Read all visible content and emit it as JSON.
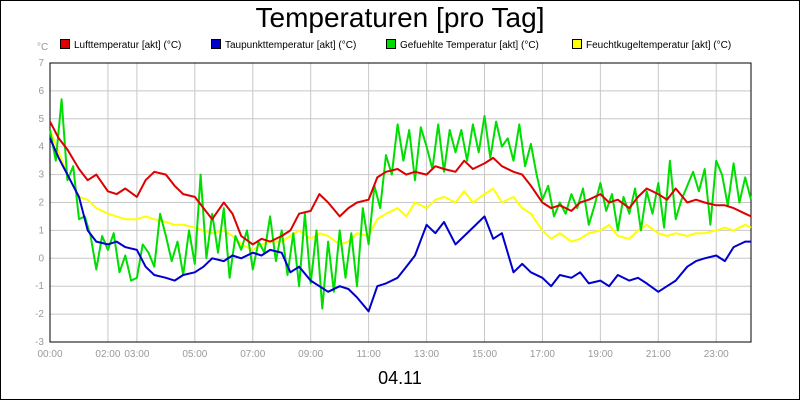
{
  "chart_data": {
    "type": "line",
    "title": "Temperaturen [pro Tag]",
    "unit_label": "°C",
    "date_label": "04.11",
    "ylim": [
      -3,
      7
    ],
    "yticks": [
      -3,
      -2,
      -1,
      0,
      1,
      2,
      3,
      4,
      5,
      6,
      7
    ],
    "xlim": [
      0,
      24.2
    ],
    "xticks": [
      {
        "t": 0,
        "label": "00:00"
      },
      {
        "t": 2,
        "label": "02:00"
      },
      {
        "t": 3,
        "label": "03:00"
      },
      {
        "t": 5,
        "label": "05:00"
      },
      {
        "t": 7,
        "label": "07:00"
      },
      {
        "t": 9,
        "label": "09:00"
      },
      {
        "t": 11,
        "label": "11:00"
      },
      {
        "t": 13,
        "label": "13:00"
      },
      {
        "t": 15,
        "label": "15:00"
      },
      {
        "t": 17,
        "label": "17:00"
      },
      {
        "t": 19,
        "label": "19:00"
      },
      {
        "t": 21,
        "label": "21:00"
      },
      {
        "t": 23,
        "label": "23:00"
      }
    ],
    "grid": true,
    "legend_position": "top",
    "series": [
      {
        "name": "Lufttemperatur [akt] (°C)",
        "color": "#dd0000",
        "x": [
          0,
          0.3,
          0.6,
          1.0,
          1.3,
          1.6,
          2.0,
          2.3,
          2.6,
          3.0,
          3.3,
          3.6,
          4.0,
          4.3,
          4.6,
          5.0,
          5.3,
          5.6,
          6.0,
          6.3,
          6.6,
          7.0,
          7.3,
          7.6,
          8.0,
          8.3,
          8.6,
          9.0,
          9.3,
          9.6,
          10.0,
          10.3,
          10.6,
          11.0,
          11.3,
          11.6,
          12.0,
          12.3,
          12.6,
          13.0,
          13.3,
          13.6,
          14.0,
          14.3,
          14.6,
          15.0,
          15.3,
          15.6,
          16.0,
          16.3,
          16.6,
          17.0,
          17.3,
          17.6,
          18.0,
          18.3,
          18.6,
          19.0,
          19.3,
          19.6,
          20.0,
          20.3,
          20.6,
          21.0,
          21.3,
          21.6,
          22.0,
          22.3,
          22.6,
          23.0,
          23.3,
          23.6,
          24.0,
          24.2
        ],
        "values": [
          4.9,
          4.3,
          3.9,
          3.2,
          2.8,
          3.0,
          2.4,
          2.3,
          2.5,
          2.2,
          2.8,
          3.1,
          3.0,
          2.6,
          2.3,
          2.2,
          1.8,
          1.4,
          2.0,
          1.6,
          0.8,
          0.5,
          0.7,
          0.6,
          0.8,
          1.0,
          1.6,
          1.7,
          2.3,
          2.0,
          1.5,
          1.8,
          2.0,
          2.1,
          2.9,
          3.1,
          3.2,
          3.0,
          3.1,
          3.0,
          3.3,
          3.2,
          3.1,
          3.5,
          3.2,
          3.4,
          3.6,
          3.3,
          3.1,
          3.0,
          2.6,
          2.0,
          1.8,
          1.9,
          1.7,
          2.0,
          2.1,
          2.3,
          2.0,
          2.1,
          1.8,
          2.2,
          2.5,
          2.3,
          2.1,
          2.5,
          2.0,
          2.1,
          2.0,
          1.9,
          1.9,
          1.8,
          1.6,
          1.5
        ]
      },
      {
        "name": "Taupunkttemperatur [akt] (°C)",
        "color": "#0000cc",
        "x": [
          0,
          0.3,
          0.6,
          1.0,
          1.3,
          1.6,
          2.0,
          2.3,
          2.6,
          3.0,
          3.3,
          3.6,
          4.0,
          4.3,
          4.6,
          5.0,
          5.3,
          5.6,
          6.0,
          6.3,
          6.6,
          7.0,
          7.3,
          7.6,
          8.0,
          8.3,
          8.6,
          9.0,
          9.3,
          9.6,
          10.0,
          10.3,
          10.6,
          11.0,
          11.3,
          11.6,
          12.0,
          12.3,
          12.6,
          13.0,
          13.3,
          13.6,
          14.0,
          14.3,
          14.6,
          15.0,
          15.3,
          15.6,
          16.0,
          16.3,
          16.6,
          17.0,
          17.3,
          17.6,
          18.0,
          18.3,
          18.6,
          19.0,
          19.3,
          19.6,
          20.0,
          20.3,
          20.6,
          21.0,
          21.3,
          21.6,
          22.0,
          22.3,
          22.6,
          23.0,
          23.3,
          23.6,
          24.0,
          24.2
        ],
        "values": [
          4.3,
          3.6,
          3.0,
          2.2,
          1.0,
          0.6,
          0.5,
          0.6,
          0.4,
          0.3,
          -0.3,
          -0.6,
          -0.7,
          -0.8,
          -0.6,
          -0.5,
          -0.3,
          0.0,
          -0.1,
          0.1,
          0.0,
          0.2,
          0.1,
          0.3,
          0.2,
          -0.5,
          -0.3,
          -0.8,
          -1.0,
          -1.2,
          -1.0,
          -1.1,
          -1.4,
          -1.9,
          -1.0,
          -0.9,
          -0.7,
          -0.3,
          0.1,
          1.2,
          0.9,
          1.3,
          0.5,
          0.8,
          1.1,
          1.5,
          0.7,
          0.9,
          -0.5,
          -0.2,
          -0.5,
          -0.7,
          -1.0,
          -0.6,
          -0.7,
          -0.5,
          -0.9,
          -0.8,
          -1.0,
          -0.6,
          -0.8,
          -0.7,
          -0.9,
          -1.2,
          -1.0,
          -0.8,
          -0.3,
          -0.1,
          0.0,
          0.1,
          -0.1,
          0.4,
          0.6,
          0.6
        ]
      },
      {
        "name": "Gefuehlte Temperatur [akt] (°C)",
        "color": "#00dd00",
        "x": [
          0,
          0.2,
          0.4,
          0.6,
          0.8,
          1.0,
          1.2,
          1.4,
          1.6,
          1.8,
          2.0,
          2.2,
          2.4,
          2.6,
          2.8,
          3.0,
          3.2,
          3.4,
          3.6,
          3.8,
          4.0,
          4.2,
          4.4,
          4.6,
          4.8,
          5.0,
          5.2,
          5.4,
          5.6,
          5.8,
          6.0,
          6.2,
          6.4,
          6.6,
          6.8,
          7.0,
          7.2,
          7.4,
          7.6,
          7.8,
          8.0,
          8.2,
          8.4,
          8.6,
          8.8,
          9.0,
          9.2,
          9.4,
          9.6,
          9.8,
          10.0,
          10.2,
          10.4,
          10.6,
          10.8,
          11.0,
          11.2,
          11.4,
          11.6,
          11.8,
          12.0,
          12.2,
          12.4,
          12.6,
          12.8,
          13.0,
          13.2,
          13.4,
          13.6,
          13.8,
          14.0,
          14.2,
          14.4,
          14.6,
          14.8,
          15.0,
          15.2,
          15.4,
          15.6,
          15.8,
          16.0,
          16.2,
          16.4,
          16.6,
          16.8,
          17.0,
          17.2,
          17.4,
          17.6,
          17.8,
          18.0,
          18.2,
          18.4,
          18.6,
          18.8,
          19.0,
          19.2,
          19.4,
          19.6,
          19.8,
          20.0,
          20.2,
          20.4,
          20.6,
          20.8,
          21.0,
          21.2,
          21.4,
          21.6,
          21.8,
          22.0,
          22.2,
          22.4,
          22.6,
          22.8,
          23.0,
          23.2,
          23.4,
          23.6,
          23.8,
          24.0,
          24.2
        ],
        "values": [
          4.6,
          3.5,
          5.7,
          2.8,
          3.3,
          1.4,
          1.5,
          0.8,
          -0.4,
          0.8,
          0.3,
          0.9,
          -0.5,
          0.1,
          -0.8,
          -0.7,
          0.5,
          0.2,
          -0.3,
          1.6,
          0.8,
          -0.1,
          0.6,
          -0.6,
          1.0,
          -0.2,
          3.0,
          0.0,
          1.6,
          0.2,
          1.8,
          -0.7,
          0.8,
          0.3,
          1.0,
          -0.4,
          0.6,
          0.2,
          1.5,
          -0.1,
          1.0,
          -0.6,
          0.9,
          -1.0,
          1.6,
          -0.9,
          1.0,
          -1.8,
          0.6,
          -1.2,
          1.0,
          -0.7,
          0.9,
          -1.0,
          1.8,
          0.5,
          2.6,
          1.8,
          3.7,
          3.0,
          4.8,
          3.5,
          4.6,
          2.8,
          4.7,
          4.0,
          3.2,
          4.8,
          3.1,
          4.6,
          3.8,
          4.6,
          3.5,
          4.8,
          3.8,
          5.1,
          3.6,
          4.9,
          4.0,
          4.3,
          3.5,
          4.8,
          3.3,
          4.1,
          3.0,
          2.1,
          2.6,
          1.5,
          2.0,
          1.6,
          2.3,
          1.8,
          2.5,
          1.2,
          1.9,
          2.7,
          1.7,
          2.3,
          1.0,
          2.2,
          1.6,
          2.5,
          1.0,
          2.4,
          1.6,
          2.7,
          1.1,
          3.5,
          1.4,
          2.1,
          2.6,
          3.1,
          2.4,
          3.2,
          1.2,
          3.5,
          3.0,
          1.9,
          3.4,
          2.0,
          2.9,
          2.1
        ]
      },
      {
        "name": "Feuchtkugeltemperatur [akt] (°C)",
        "color": "#ffff00",
        "x": [
          0,
          0.3,
          0.6,
          1.0,
          1.3,
          1.6,
          2.0,
          2.3,
          2.6,
          3.0,
          3.3,
          3.6,
          4.0,
          4.3,
          4.6,
          5.0,
          5.3,
          5.6,
          6.0,
          6.3,
          6.6,
          7.0,
          7.3,
          7.6,
          8.0,
          8.3,
          8.6,
          9.0,
          9.3,
          9.6,
          10.0,
          10.3,
          10.6,
          11.0,
          11.3,
          11.6,
          12.0,
          12.3,
          12.6,
          13.0,
          13.3,
          13.6,
          14.0,
          14.3,
          14.6,
          15.0,
          15.3,
          15.6,
          16.0,
          16.3,
          16.6,
          17.0,
          17.3,
          17.6,
          18.0,
          18.3,
          18.6,
          19.0,
          19.3,
          19.6,
          20.0,
          20.3,
          20.6,
          21.0,
          21.3,
          21.6,
          22.0,
          22.3,
          22.6,
          23.0,
          23.3,
          23.6,
          24.0,
          24.2
        ],
        "values": [
          4.6,
          3.8,
          3.0,
          2.2,
          2.1,
          1.8,
          1.6,
          1.5,
          1.4,
          1.4,
          1.5,
          1.4,
          1.3,
          1.2,
          1.2,
          1.1,
          1.0,
          0.9,
          1.0,
          0.8,
          0.5,
          0.3,
          0.5,
          0.6,
          0.6,
          0.8,
          1.0,
          0.7,
          0.9,
          0.8,
          0.5,
          0.6,
          0.9,
          0.8,
          1.4,
          1.6,
          1.8,
          1.5,
          2.0,
          1.8,
          2.1,
          2.2,
          2.0,
          2.4,
          2.0,
          2.3,
          2.5,
          2.0,
          2.2,
          1.8,
          1.6,
          1.0,
          0.7,
          0.9,
          0.6,
          0.7,
          0.9,
          1.0,
          1.2,
          0.8,
          0.7,
          1.0,
          1.2,
          0.9,
          0.8,
          0.9,
          0.8,
          0.9,
          0.9,
          1.0,
          1.1,
          1.0,
          1.2,
          1.1
        ]
      }
    ]
  }
}
